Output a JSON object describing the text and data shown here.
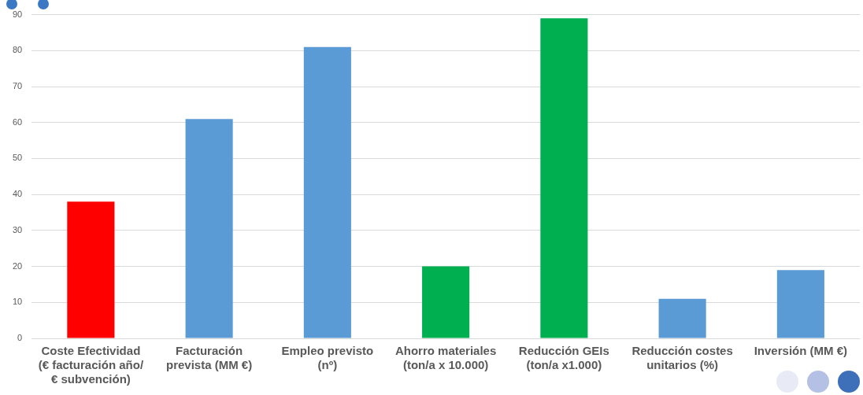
{
  "chart_data": {
    "type": "bar",
    "categories": [
      "Coste Efectividad (€ facturación año/ € subvención)",
      "Facturación prevista (MM €)",
      "Empleo previsto (nº)",
      "Ahorro materiales (ton/a x 10.000)",
      "Reducción GEIs (ton/a x1.000)",
      "Reducción costes unitarios (%)",
      "Inversión (MM €)"
    ],
    "values": [
      38,
      61,
      81,
      20,
      89,
      11,
      19
    ],
    "colors": [
      "#ff0000",
      "#5b9bd5",
      "#5b9bd5",
      "#00b050",
      "#00b050",
      "#5b9bd5",
      "#5b9bd5"
    ],
    "ylim": [
      0,
      90
    ],
    "yticks": [
      0,
      10,
      20,
      30,
      40,
      50,
      60,
      70,
      80,
      90
    ],
    "grid": "y",
    "legend": false
  }
}
